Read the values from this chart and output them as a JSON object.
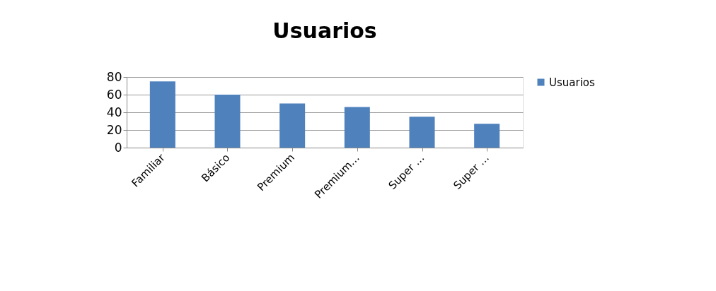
{
  "chart_data": {
    "type": "bar",
    "title": "Usuarios",
    "categories": [
      "Familiar",
      "Básico",
      "Premium",
      "Premium…",
      "Super …",
      "Super …"
    ],
    "series": [
      {
        "name": "Usuarios",
        "color": "#4f81bd",
        "values": [
          75,
          60,
          50,
          46,
          35,
          27
        ]
      }
    ],
    "ylim": [
      0,
      80
    ],
    "yticks": [
      0,
      20,
      40,
      60,
      80
    ],
    "grid": "y",
    "legend": "right"
  }
}
